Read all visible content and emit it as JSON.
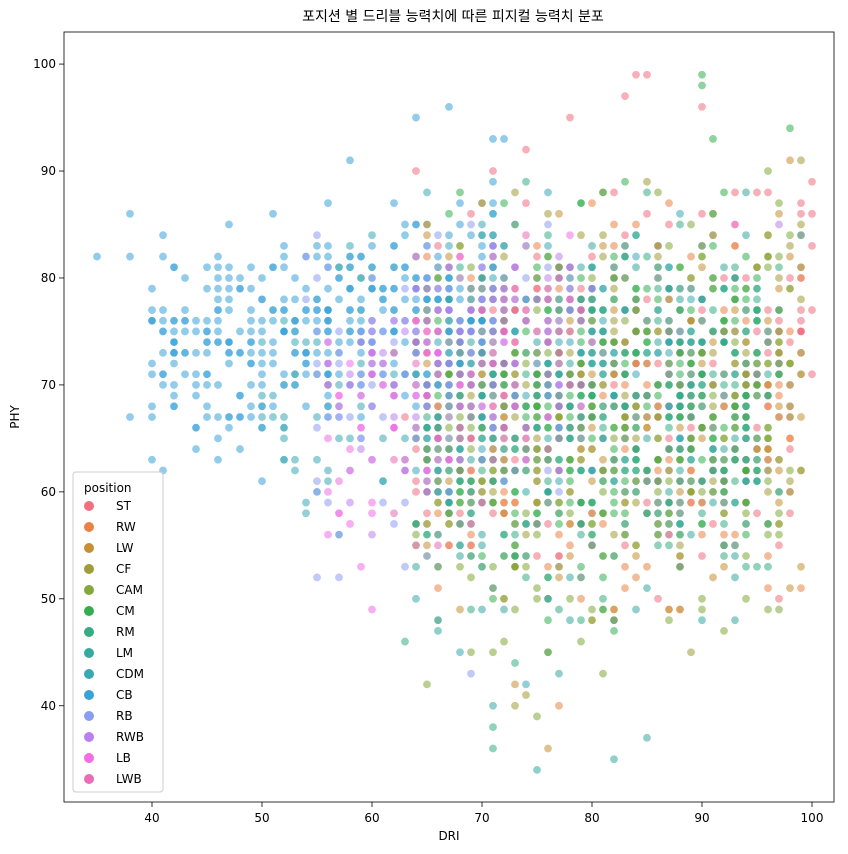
{
  "chart_data": {
    "type": "scatter",
    "title": "포지션 별 드리블 능력치에 따른 피지컬 능력치 분포",
    "xlabel": "DRI",
    "ylabel": "PHY",
    "xlim": [
      32,
      102
    ],
    "ylim": [
      31,
      103
    ],
    "xticks": [
      40,
      50,
      60,
      70,
      80,
      90,
      100
    ],
    "yticks": [
      40,
      50,
      60,
      70,
      80,
      90,
      100
    ],
    "grid": false,
    "legend": {
      "title": "position",
      "placement": "lower-left"
    },
    "point_alpha": 0.55,
    "series": [
      {
        "name": "ST",
        "color": "#f0707f",
        "cloud": {
          "x": [
            63,
            100
          ],
          "y_low": 44,
          "y_high": 97,
          "count": 260
        },
        "points": [
          [
            84,
            99
          ],
          [
            85,
            99
          ],
          [
            78,
            95
          ],
          [
            99,
            87
          ],
          [
            99,
            80
          ],
          [
            99,
            77
          ],
          [
            97,
            75
          ],
          [
            90,
            96
          ],
          [
            83,
            97
          ]
        ]
      },
      {
        "name": "RW",
        "color": "#e98345",
        "cloud": {
          "x": [
            65,
            99
          ],
          "y_low": 42,
          "y_high": 92,
          "count": 200
        },
        "points": [
          [
            96,
            68
          ],
          [
            93,
            64
          ],
          [
            88,
            53
          ],
          [
            82,
            48
          ],
          [
            77,
            40
          ],
          [
            94,
            62
          ],
          [
            97,
            69
          ]
        ]
      },
      {
        "name": "LW",
        "color": "#c68f35",
        "cloud": {
          "x": [
            65,
            99
          ],
          "y_low": 42,
          "y_high": 92,
          "count": 200
        },
        "points": [
          [
            98,
            91
          ],
          [
            98,
            82
          ],
          [
            96,
            76
          ],
          [
            92,
            55
          ],
          [
            88,
            49
          ],
          [
            76,
            36
          ],
          [
            73,
            42
          ],
          [
            91,
            52
          ]
        ]
      },
      {
        "name": "CF",
        "color": "#a09c36",
        "cloud": {
          "x": [
            68,
            99
          ],
          "y_low": 46,
          "y_high": 94,
          "count": 150
        },
        "points": [
          [
            99,
            85
          ],
          [
            99,
            73
          ],
          [
            99,
            71
          ],
          [
            89,
            45
          ],
          [
            74,
            41
          ],
          [
            73,
            40
          ]
        ]
      },
      {
        "name": "CAM",
        "color": "#82a93a",
        "cloud": {
          "x": [
            64,
            98
          ],
          "y_low": 40,
          "y_high": 94,
          "count": 260
        },
        "points": [
          [
            96,
            65
          ],
          [
            94,
            67
          ],
          [
            75,
            39
          ],
          [
            81,
            43
          ],
          [
            98,
            79
          ]
        ]
      },
      {
        "name": "CM",
        "color": "#33ae4e",
        "cloud": {
          "x": [
            66,
            95
          ],
          "y_low": 44,
          "y_high": 94,
          "count": 320
        },
        "points": [
          [
            98,
            94
          ],
          [
            90,
            99
          ],
          [
            90,
            98
          ],
          [
            82,
            47
          ]
        ]
      },
      {
        "name": "RM",
        "color": "#35ad83",
        "cloud": {
          "x": [
            64,
            97
          ],
          "y_low": 42,
          "y_high": 92,
          "count": 200
        },
        "points": [
          [
            71,
            36
          ],
          [
            71,
            38
          ],
          [
            73,
            44
          ],
          [
            63,
            46
          ],
          [
            99,
            84
          ]
        ]
      },
      {
        "name": "LM",
        "color": "#36aa9f",
        "cloud": {
          "x": [
            64,
            97
          ],
          "y_low": 42,
          "y_high": 92,
          "count": 200
        },
        "points": [
          [
            82,
            35
          ],
          [
            75,
            34
          ],
          [
            85,
            37
          ],
          [
            77,
            43
          ],
          [
            66,
            47
          ],
          [
            71,
            40
          ]
        ]
      },
      {
        "name": "CDM",
        "color": "#38a8b6",
        "cloud": {
          "x": [
            50,
            90
          ],
          "y_low": 52,
          "y_high": 92,
          "count": 220
        },
        "points": [
          [
            64,
            50
          ],
          [
            66,
            48
          ],
          [
            74,
            42
          ],
          [
            68,
            45
          ],
          [
            52,
            63
          ]
        ]
      },
      {
        "name": "CB",
        "color": "#3ba2d8",
        "cloud": {
          "x": [
            40,
            72
          ],
          "y_low": 62,
          "y_high": 90,
          "count": 380
        },
        "points": [
          [
            35,
            82
          ],
          [
            38,
            86
          ],
          [
            38,
            82
          ],
          [
            38,
            67
          ],
          [
            40,
            67
          ],
          [
            41,
            62
          ],
          [
            42,
            69
          ],
          [
            44,
            64
          ],
          [
            45,
            67
          ],
          [
            46,
            63
          ],
          [
            48,
            64
          ],
          [
            50,
            61
          ],
          [
            56,
            87
          ],
          [
            58,
            91
          ],
          [
            64,
            95
          ],
          [
            67,
            96
          ],
          [
            71,
            93
          ],
          [
            72,
            93
          ]
        ]
      },
      {
        "name": "RB",
        "color": "#8c9cf0",
        "cloud": {
          "x": [
            54,
            78
          ],
          "y_low": 54,
          "y_high": 88,
          "count": 120
        },
        "points": [
          [
            55,
            52
          ],
          [
            57,
            52
          ],
          [
            63,
            53
          ],
          [
            65,
            54
          ],
          [
            69,
            43
          ]
        ]
      },
      {
        "name": "RWB",
        "color": "#bb80f0",
        "cloud": {
          "x": [
            58,
            80
          ],
          "y_low": 58,
          "y_high": 88,
          "count": 60
        },
        "points": [
          [
            58,
            59
          ],
          [
            60,
            56
          ],
          [
            97,
            85
          ]
        ]
      },
      {
        "name": "LB",
        "color": "#f36de5",
        "cloud": {
          "x": [
            56,
            78
          ],
          "y_low": 52,
          "y_high": 86,
          "count": 90
        },
        "points": [
          [
            60,
            49
          ],
          [
            59,
            53
          ],
          [
            56,
            56
          ],
          [
            58,
            57
          ],
          [
            60,
            59
          ],
          [
            93,
            85
          ]
        ]
      },
      {
        "name": "LWB",
        "color": "#ea6bb8",
        "cloud": {
          "x": [
            62,
            80
          ],
          "y_low": 58,
          "y_high": 88,
          "count": 50
        },
        "points": [
          [
            62,
            58
          ],
          [
            64,
            55
          ],
          [
            66,
            55
          ],
          [
            87,
            56
          ]
        ]
      }
    ]
  }
}
